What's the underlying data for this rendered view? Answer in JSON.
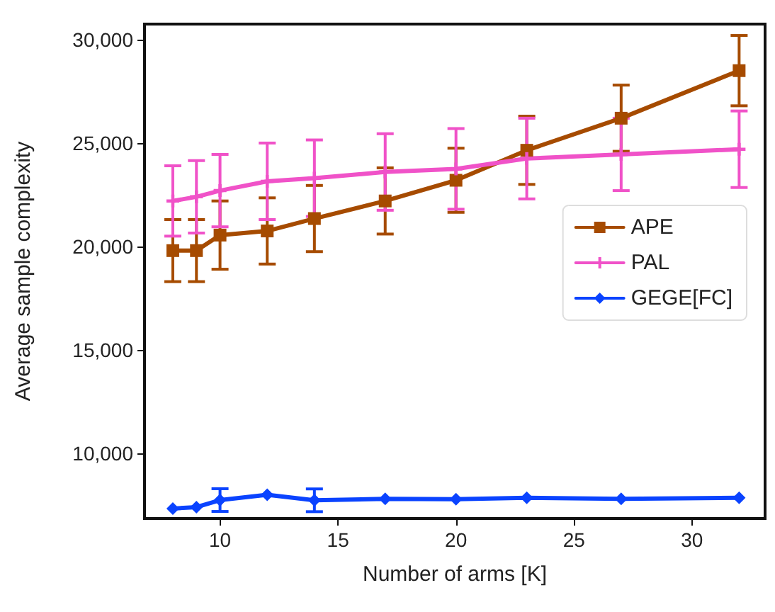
{
  "chart_data": {
    "type": "line",
    "xlabel": "Number of arms [K]",
    "ylabel": "Average sample complexity",
    "x": [
      8,
      9,
      10,
      12,
      14,
      17,
      20,
      23,
      27,
      32
    ],
    "series": [
      {
        "name": "APE",
        "color": "#a64b00",
        "marker": "square",
        "values": [
          19800,
          19800,
          20550,
          20750,
          21350,
          22200,
          23200,
          24650,
          26200,
          28500
        ],
        "errors": [
          1500,
          1500,
          1650,
          1600,
          1600,
          1600,
          1550,
          1650,
          1600,
          1700
        ]
      },
      {
        "name": "PAL",
        "color": "#f052c8",
        "marker": "cross",
        "values": [
          22200,
          22400,
          22700,
          23150,
          23300,
          23600,
          23750,
          24250,
          24450,
          24700
        ],
        "errors": [
          1700,
          1750,
          1750,
          1850,
          1850,
          1850,
          1950,
          1950,
          1750,
          1850
        ]
      },
      {
        "name": "GEGE[FC]",
        "color": "#0a43ff",
        "marker": "diamond",
        "values": [
          7330,
          7400,
          7740,
          8000,
          7730,
          7800,
          7780,
          7850,
          7800,
          7850
        ],
        "errors": [
          null,
          null,
          550,
          null,
          550,
          null,
          null,
          null,
          null,
          null
        ]
      }
    ],
    "xlim": [
      6.8,
      33.1
    ],
    "xticks": [
      10,
      15,
      20,
      25,
      30
    ],
    "ylim": [
      6850,
      30750
    ],
    "yticks": [
      {
        "value": 10000,
        "label": "10,000"
      },
      {
        "value": 15000,
        "label": "15,000"
      },
      {
        "value": 20000,
        "label": "20,000"
      },
      {
        "value": 25000,
        "label": "25,000"
      },
      {
        "value": 30000,
        "label": "30,000"
      }
    ],
    "grid": false,
    "legend": "right",
    "line_style": "solid"
  }
}
